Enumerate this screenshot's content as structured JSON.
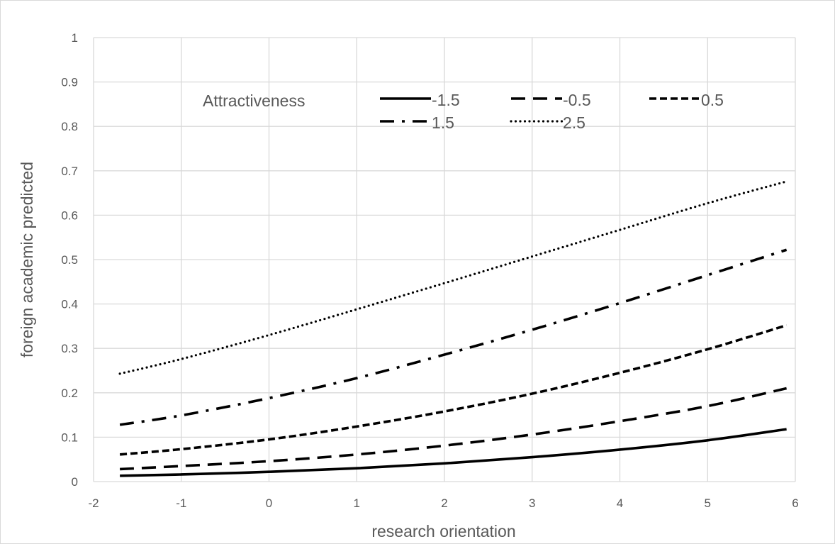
{
  "chart_data": {
    "type": "line",
    "title": "",
    "xlabel": "research orientation",
    "ylabel": "foreign academic predicted",
    "xlim": [
      -2,
      6
    ],
    "ylim": [
      0,
      1
    ],
    "x_ticks": [
      "-2",
      "-1",
      "0",
      "1",
      "2",
      "3",
      "4",
      "5",
      "6"
    ],
    "y_ticks": [
      "0",
      "0.1",
      "0.2",
      "0.3",
      "0.4",
      "0.5",
      "0.6",
      "0.7",
      "0.8",
      "0.9",
      "1"
    ],
    "grid": true,
    "legend_title": "Attractiveness",
    "legend_position": "top",
    "x": [
      -1.7,
      -1,
      0,
      1,
      2,
      3,
      4,
      5,
      5.9
    ],
    "series": [
      {
        "name": "-1.5",
        "style": "solid",
        "values": [
          0.013,
          0.016,
          0.022,
          0.03,
          0.041,
          0.055,
          0.072,
          0.093,
          0.118
        ]
      },
      {
        "name": "-0.5",
        "style": "dash",
        "values": [
          0.028,
          0.035,
          0.046,
          0.061,
          0.081,
          0.106,
          0.136,
          0.17,
          0.21
        ]
      },
      {
        "name": "0.5",
        "style": "short-dash",
        "values": [
          0.061,
          0.073,
          0.095,
          0.124,
          0.158,
          0.198,
          0.245,
          0.298,
          0.352
        ]
      },
      {
        "name": "1.5",
        "style": "dash-dot",
        "values": [
          0.128,
          0.149,
          0.188,
          0.233,
          0.286,
          0.342,
          0.402,
          0.465,
          0.522
        ]
      },
      {
        "name": "2.5",
        "style": "dotted",
        "values": [
          0.243,
          0.276,
          0.33,
          0.388,
          0.447,
          0.507,
          0.567,
          0.627,
          0.676
        ]
      }
    ],
    "colors": {
      "line": "#000000",
      "grid": "#d9d9d9",
      "text": "#595959"
    }
  }
}
